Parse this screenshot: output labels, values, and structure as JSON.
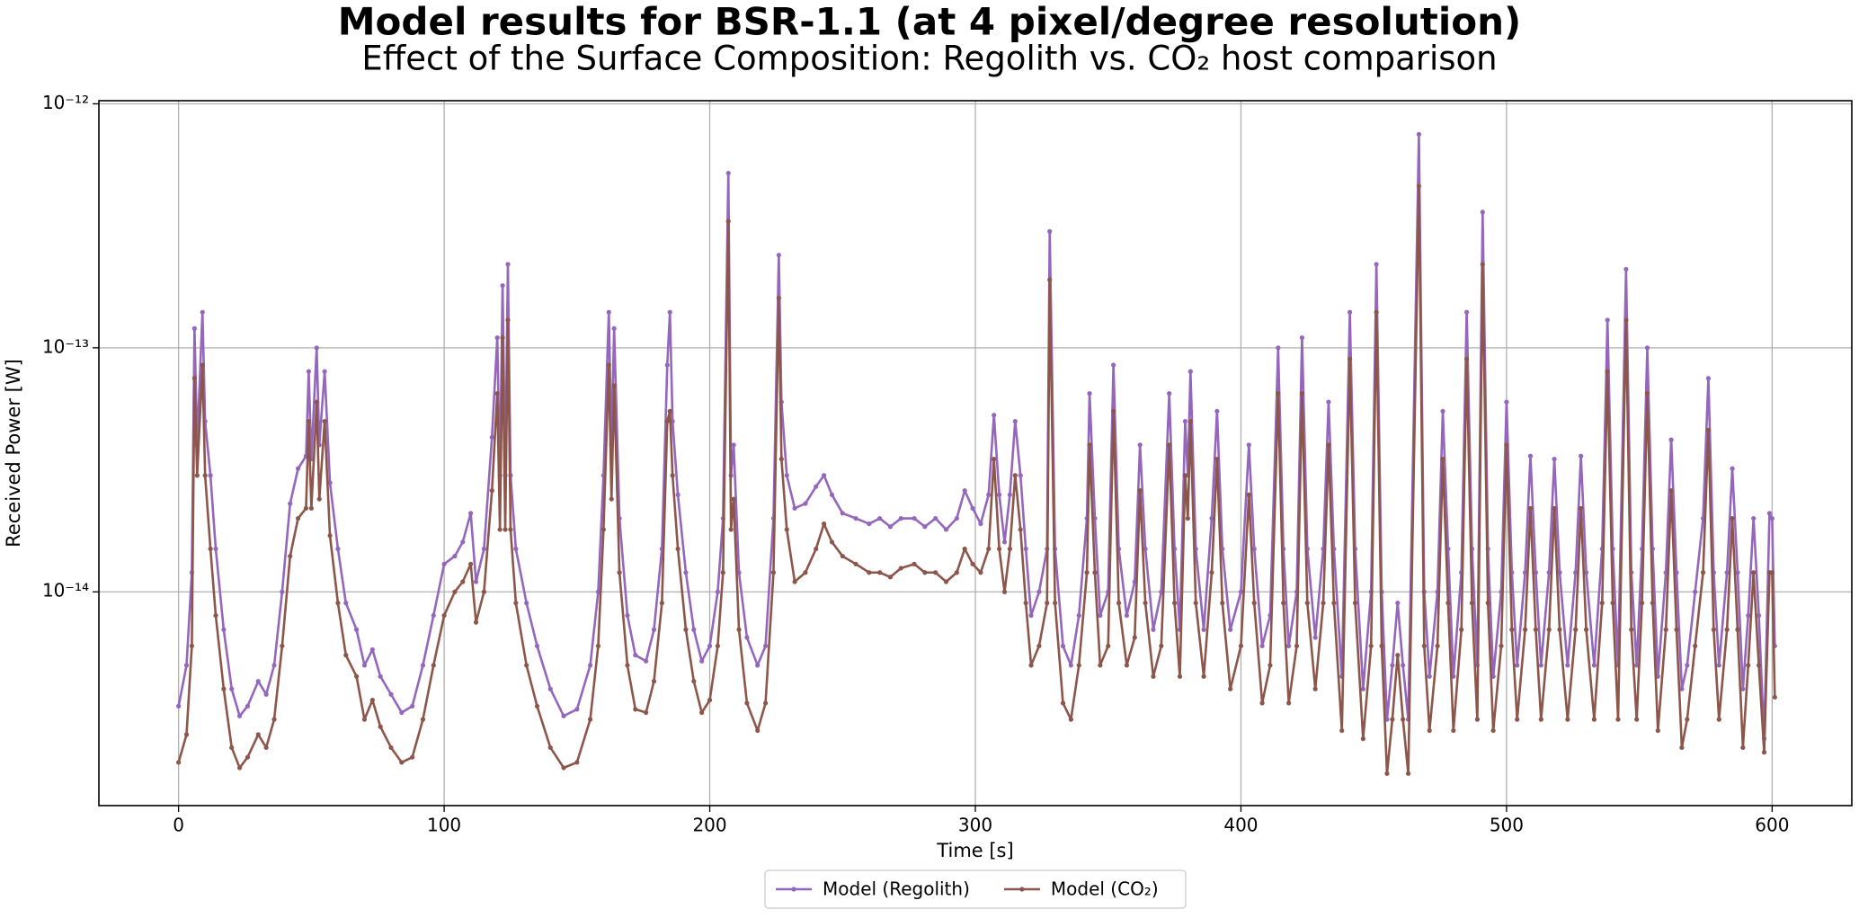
{
  "chart_data": {
    "type": "line",
    "title": "Model results for BSR-1.1 (at 4 pixel/degree resolution)",
    "subtitle": "Effect of the Surface Composition: Regolith vs. CO₂ host comparison",
    "x_label": "Time [s]",
    "y_label": "Received Power [W]",
    "y_scale": "log",
    "grid": true,
    "legend": "bottom",
    "xlim": [
      -30,
      630
    ],
    "xticks": [
      0,
      100,
      200,
      300,
      400,
      500,
      600
    ],
    "ylim": [
      1.33e-15,
      1.03e-12
    ],
    "yticks": [
      {
        "value": 1e-14,
        "label": "10⁻¹⁴"
      },
      {
        "value": 1e-13,
        "label": "10⁻¹³"
      },
      {
        "value": 1e-12,
        "label": "10⁻¹²"
      }
    ],
    "x": [
      0,
      3,
      5,
      6,
      7,
      9,
      10,
      12,
      14,
      17,
      20,
      23,
      26,
      30,
      33,
      36,
      39,
      42,
      45,
      48,
      49,
      50,
      52,
      53,
      55,
      57,
      60,
      63,
      67,
      70,
      73,
      76,
      80,
      84,
      88,
      92,
      96,
      100,
      104,
      107,
      110,
      112,
      115,
      118,
      120,
      121,
      122,
      123,
      124,
      125,
      127,
      131,
      135,
      140,
      145,
      150,
      155,
      158,
      160,
      162,
      163,
      164,
      166,
      169,
      172,
      176,
      179,
      182,
      184,
      185,
      186,
      188,
      191,
      194,
      197,
      200,
      203,
      205,
      207,
      208,
      209,
      211,
      214,
      218,
      221,
      224,
      226,
      227,
      229,
      232,
      236,
      240,
      243,
      246,
      250,
      255,
      260,
      264,
      268,
      272,
      277,
      281,
      285,
      289,
      293,
      296,
      299,
      302,
      305,
      307,
      309,
      311,
      313,
      315,
      317,
      319,
      321,
      324,
      327,
      328,
      330,
      333,
      336,
      339,
      342,
      343,
      345,
      347,
      350,
      352,
      354,
      357,
      360,
      362,
      364,
      367,
      370,
      373,
      375,
      377,
      379,
      380,
      381,
      383,
      386,
      389,
      391,
      393,
      396,
      400,
      403,
      405,
      408,
      411,
      414,
      416,
      418,
      421,
      423,
      425,
      428,
      431,
      433,
      435,
      438,
      441,
      443,
      446,
      449,
      451,
      453,
      455,
      457,
      459,
      461,
      463,
      467,
      469,
      471,
      474,
      476,
      478,
      480,
      483,
      485,
      487,
      489,
      491,
      493,
      495,
      498,
      500,
      502,
      504,
      507,
      509,
      511,
      513,
      516,
      518,
      520,
      523,
      526,
      528,
      530,
      533,
      536,
      538,
      540,
      542,
      545,
      547,
      549,
      551,
      553,
      555,
      557,
      560,
      562,
      564,
      566,
      568,
      571,
      574,
      576,
      578,
      580,
      583,
      585,
      587,
      589,
      591,
      593,
      595,
      597,
      599,
      600,
      601
    ],
    "series": [
      {
        "name": "Model (Regolith)",
        "color": "#9467bd",
        "values": [
          3.4e-15,
          5e-15,
          1.2e-14,
          1.2e-13,
          4e-14,
          1.4e-13,
          5e-14,
          3e-14,
          1.5e-14,
          7e-15,
          4e-15,
          3.1e-15,
          3.4e-15,
          4.3e-15,
          3.8e-15,
          5e-15,
          1e-14,
          2.3e-14,
          3.2e-14,
          3.6e-14,
          8e-14,
          3.5e-14,
          1e-13,
          4e-14,
          8e-14,
          2.8e-14,
          1.5e-14,
          9e-15,
          7e-15,
          5e-15,
          5.8e-15,
          4.5e-15,
          3.8e-15,
          3.2e-15,
          3.4e-15,
          5e-15,
          8e-15,
          1.3e-14,
          1.4e-14,
          1.6e-14,
          2.1e-14,
          1.1e-14,
          1.5e-14,
          4.3e-14,
          1.1e-13,
          3e-14,
          1.8e-13,
          3e-14,
          2.2e-13,
          3e-14,
          1.5e-14,
          9e-15,
          6e-15,
          4e-15,
          3.1e-15,
          3.3e-15,
          5e-15,
          1e-14,
          3e-14,
          1.4e-13,
          4e-14,
          1.2e-13,
          2e-14,
          8e-15,
          5.5e-15,
          5.2e-15,
          7e-15,
          1.5e-14,
          8.5e-14,
          1.4e-13,
          5e-14,
          2.5e-14,
          1.2e-14,
          7e-15,
          5.2e-15,
          6e-15,
          1e-14,
          2e-14,
          5.2e-13,
          3e-14,
          4e-14,
          1.2e-14,
          6.5e-15,
          5e-15,
          6e-15,
          2e-14,
          2.4e-13,
          6e-14,
          3e-14,
          2.2e-14,
          2.3e-14,
          2.7e-14,
          3e-14,
          2.5e-14,
          2.1e-14,
          2e-14,
          1.9e-14,
          2e-14,
          1.85e-14,
          2e-14,
          2e-14,
          1.85e-14,
          2e-14,
          1.8e-14,
          2e-14,
          2.6e-14,
          2.2e-14,
          1.9e-14,
          2.5e-14,
          5.3e-14,
          2.5e-14,
          1.6e-14,
          2.5e-14,
          5e-14,
          3e-14,
          1.5e-14,
          8e-15,
          1e-14,
          1.5e-14,
          3e-13,
          1.5e-14,
          6e-15,
          5e-15,
          8e-15,
          2e-14,
          6.5e-14,
          2e-14,
          8e-15,
          1e-14,
          8.5e-14,
          1.5e-14,
          8e-15,
          1.1e-14,
          4e-14,
          1.5e-14,
          7e-15,
          1e-14,
          6.5e-14,
          1.5e-14,
          7e-15,
          5e-14,
          3e-14,
          8e-14,
          1.5e-14,
          7e-15,
          2e-14,
          5.5e-14,
          1.5e-14,
          7e-15,
          1e-14,
          4e-14,
          1.5e-14,
          6e-15,
          8e-15,
          1e-13,
          1.5e-14,
          6e-15,
          1e-14,
          1.1e-13,
          1.5e-14,
          6.5e-15,
          1.5e-14,
          6e-14,
          1.5e-14,
          4.5e-15,
          1.4e-13,
          1.5e-14,
          4e-15,
          1e-14,
          2.2e-13,
          1e-14,
          3e-15,
          5e-15,
          9e-15,
          5e-15,
          3e-15,
          7.5e-13,
          1e-14,
          4.5e-15,
          1e-14,
          5.5e-14,
          1.5e-14,
          4.5e-15,
          1.2e-14,
          1.4e-13,
          1.5e-14,
          5e-15,
          3.6e-13,
          1.5e-14,
          4.5e-15,
          1e-14,
          6e-14,
          1.2e-14,
          5e-15,
          1.2e-14,
          3.6e-14,
          1.2e-14,
          5e-15,
          1.2e-14,
          3.5e-14,
          1.2e-14,
          5e-15,
          1.2e-14,
          3.6e-14,
          1.2e-14,
          5e-15,
          1.5e-14,
          1.3e-13,
          1.5e-14,
          5e-15,
          2.1e-13,
          1.2e-14,
          5e-15,
          1.5e-14,
          1e-13,
          1.5e-14,
          4.5e-15,
          1.2e-14,
          4.2e-14,
          1.2e-14,
          4e-15,
          5e-15,
          1e-14,
          2e-14,
          7.5e-14,
          1.2e-14,
          5e-15,
          1.2e-14,
          3.2e-14,
          1.2e-14,
          4e-15,
          8e-15,
          2e-14,
          8e-15,
          2.5e-15,
          2.1e-14,
          2e-14,
          6e-15
        ]
      },
      {
        "name": "Model (CO₂)",
        "color": "#8c564b",
        "values": [
          2e-15,
          2.6e-15,
          6e-15,
          7.5e-14,
          3e-14,
          8.5e-14,
          3e-14,
          1.5e-14,
          8e-15,
          4e-15,
          2.3e-15,
          1.9e-15,
          2.1e-15,
          2.6e-15,
          2.3e-15,
          3e-15,
          6e-15,
          1.4e-14,
          2e-14,
          2.2e-14,
          5e-14,
          2.2e-14,
          6e-14,
          2.4e-14,
          5e-14,
          1.7e-14,
          9e-15,
          5.5e-15,
          4.5e-15,
          3e-15,
          3.6e-15,
          2.8e-15,
          2.3e-15,
          2e-15,
          2.1e-15,
          3e-15,
          5e-15,
          8e-15,
          1e-14,
          1.1e-14,
          1.3e-14,
          7.5e-15,
          1e-14,
          2.6e-14,
          6.5e-14,
          1.8e-14,
          1.1e-13,
          1.8e-14,
          1.3e-13,
          1.8e-14,
          9e-15,
          5e-15,
          3.4e-15,
          2.3e-15,
          1.9e-15,
          2e-15,
          3e-15,
          6e-15,
          1.8e-14,
          8.5e-14,
          2.4e-14,
          7e-14,
          1.2e-14,
          5e-15,
          3.3e-15,
          3.2e-15,
          4.3e-15,
          9e-15,
          5e-14,
          5.5e-14,
          3e-14,
          1.5e-14,
          7e-15,
          4.3e-15,
          3.2e-15,
          3.6e-15,
          6e-15,
          1.2e-14,
          3.3e-13,
          1.8e-14,
          2.4e-14,
          7e-15,
          3.5e-15,
          2.7e-15,
          3.5e-15,
          1.2e-14,
          1.6e-13,
          3.5e-14,
          1.8e-14,
          1.1e-14,
          1.2e-14,
          1.5e-14,
          1.9e-14,
          1.6e-14,
          1.4e-14,
          1.3e-14,
          1.2e-14,
          1.2e-14,
          1.15e-14,
          1.25e-14,
          1.3e-14,
          1.2e-14,
          1.2e-14,
          1.1e-14,
          1.2e-14,
          1.5e-14,
          1.3e-14,
          1.2e-14,
          1.5e-14,
          3.5e-14,
          1.5e-14,
          1e-14,
          1.5e-14,
          3e-14,
          1.8e-14,
          9e-15,
          5e-15,
          6e-15,
          9e-15,
          1.9e-13,
          9e-15,
          3.5e-15,
          3e-15,
          5e-15,
          1.2e-14,
          4e-14,
          1.2e-14,
          5e-15,
          6e-15,
          5.5e-14,
          9e-15,
          5e-15,
          6.5e-15,
          2.6e-14,
          9e-15,
          4.5e-15,
          6e-15,
          4e-14,
          9e-15,
          4.5e-15,
          3e-14,
          2e-14,
          5e-14,
          9e-15,
          4.5e-15,
          1.2e-14,
          3.5e-14,
          9e-15,
          4e-15,
          6e-15,
          2.5e-14,
          9e-15,
          3.5e-15,
          5e-15,
          6.5e-14,
          9e-15,
          3.5e-15,
          6e-15,
          6.5e-14,
          9e-15,
          4e-15,
          9e-15,
          4e-14,
          9e-15,
          2.7e-15,
          9e-14,
          9e-15,
          2.5e-15,
          6e-15,
          1.4e-13,
          6e-15,
          1.8e-15,
          3e-15,
          5.5e-15,
          3e-15,
          1.8e-15,
          4.6e-13,
          6e-15,
          2.7e-15,
          6e-15,
          3.5e-14,
          9e-15,
          2.7e-15,
          7e-15,
          9e-14,
          9e-15,
          3e-15,
          2.2e-13,
          9e-15,
          2.7e-15,
          6e-15,
          4e-14,
          7e-15,
          3e-15,
          7e-15,
          2.2e-14,
          7e-15,
          3e-15,
          7e-15,
          2.2e-14,
          7e-15,
          3e-15,
          7e-15,
          2.2e-14,
          7e-15,
          3e-15,
          9e-15,
          8e-14,
          9e-15,
          3e-15,
          1.3e-13,
          7e-15,
          3e-15,
          9e-15,
          6.5e-14,
          9e-15,
          2.7e-15,
          7e-15,
          2.6e-14,
          7e-15,
          2.3e-15,
          3e-15,
          6e-15,
          1.2e-14,
          4.6e-14,
          7e-15,
          3e-15,
          7e-15,
          2e-14,
          7e-15,
          2.3e-15,
          5e-15,
          1.2e-14,
          5e-15,
          2.2e-15,
          1.2e-14,
          1.2e-14,
          3.7e-15
        ]
      }
    ]
  }
}
